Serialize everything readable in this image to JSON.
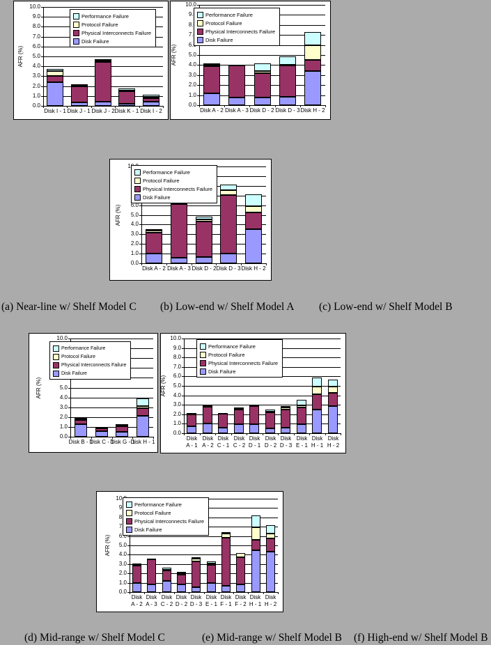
{
  "page": {
    "background_color": "#ABABAB"
  },
  "failure_colors": {
    "performance_failure": "#CCFFFF",
    "protocol_failure": "#FFFFCC",
    "physical_interconnects_failure": "#993366",
    "disk_failure": "#9999FF"
  },
  "chart_data": [
    {
      "id": "a",
      "caption": "(a) Near-line w/ Shelf Model C",
      "type": "bar",
      "stacked": true,
      "ylabel": "AFR (%)",
      "ylim": [
        0,
        10
      ],
      "ytick_step": 1.0,
      "grid": true,
      "legend_position": "top-inside",
      "two_line_xlabels": false,
      "legend_order": [
        "Performance Failure",
        "Protocol Failure",
        "Physical Interconnects Failure",
        "Disk Failure"
      ],
      "categories": [
        "Disk I - 1",
        "Disk J - 1",
        "Disk J - 2",
        "Disk K - 1",
        "Disk I - 2"
      ],
      "series": [
        {
          "name": "Disk Failure",
          "color": "#9999FF",
          "values": [
            2.4,
            0.35,
            0.45,
            0.2,
            0.45
          ]
        },
        {
          "name": "Physical Interconnects Failure",
          "color": "#993366",
          "values": [
            0.6,
            1.65,
            4.0,
            1.3,
            0.35
          ]
        },
        {
          "name": "Protocol Failure",
          "color": "#FFFFCC",
          "values": [
            0.55,
            0.05,
            0.1,
            0.05,
            0.15
          ]
        },
        {
          "name": "Performance Failure",
          "color": "#CCFFFF",
          "values": [
            0.2,
            0.1,
            0.15,
            0.2,
            0.15
          ]
        }
      ]
    },
    {
      "id": "b",
      "caption": "(b) Low-end w/ Shelf Model A",
      "type": "bar",
      "stacked": true,
      "ylabel": "AFR (%)",
      "ylim": [
        0,
        10
      ],
      "ytick_step": 1.0,
      "grid": true,
      "legend_position": "top-inside",
      "two_line_xlabels": false,
      "legend_order": [
        "Performance Failure",
        "Protocol Failure",
        "Physical Interconnects Failure",
        "Disk Failure"
      ],
      "categories": [
        "Disk A - 2",
        "Disk A - 3",
        "Disk D - 2",
        "Disk D - 3",
        "Disk H - 2"
      ],
      "series": [
        {
          "name": "Disk Failure",
          "color": "#9999FF",
          "values": [
            1.2,
            0.75,
            0.75,
            0.85,
            3.4
          ]
        },
        {
          "name": "Physical Interconnects Failure",
          "color": "#993366",
          "values": [
            2.7,
            3.2,
            2.45,
            3.15,
            1.1
          ]
        },
        {
          "name": "Protocol Failure",
          "color": "#FFFFCC",
          "values": [
            0.15,
            0.05,
            0.2,
            0.05,
            1.5
          ]
        },
        {
          "name": "Performance Failure",
          "color": "#CCFFFF",
          "values": [
            0.15,
            0.05,
            0.8,
            0.8,
            1.3
          ]
        }
      ]
    },
    {
      "id": "c",
      "caption": "(c) Low-end w/ Shelf Model B",
      "type": "bar",
      "stacked": true,
      "ylabel": "AFR (%)",
      "ylim": [
        0,
        10
      ],
      "ytick_step": 1.0,
      "grid": true,
      "legend_position": "top-inside",
      "two_line_xlabels": false,
      "legend_order": [
        "Performance Failure",
        "Protocol Failure",
        "Physical Interconnects Failure",
        "Disk Failure"
      ],
      "categories": [
        "Disk A - 2",
        "Disk A - 3",
        "Disk D - 2",
        "Disk D - 3",
        "Disk H - 2"
      ],
      "series": [
        {
          "name": "Disk Failure",
          "color": "#9999FF",
          "values": [
            1.0,
            0.55,
            0.65,
            1.0,
            3.5
          ]
        },
        {
          "name": "Physical Interconnects Failure",
          "color": "#993366",
          "values": [
            2.2,
            5.55,
            3.7,
            6.05,
            1.75
          ]
        },
        {
          "name": "Protocol Failure",
          "color": "#FFFFCC",
          "values": [
            0.15,
            0.1,
            0.15,
            0.5,
            0.65
          ]
        },
        {
          "name": "Performance Failure",
          "color": "#CCFFFF",
          "values": [
            0.15,
            0.1,
            0.3,
            0.6,
            1.25
          ]
        }
      ]
    },
    {
      "id": "d",
      "caption": "(d) Mid-range w/ Shelf Model C",
      "type": "bar",
      "stacked": true,
      "ylabel": "AFR (%)",
      "ylim": [
        0,
        10
      ],
      "ytick_step": 1.0,
      "grid": true,
      "legend_position": "top-inside",
      "two_line_xlabels": false,
      "legend_order": [
        "Performance Failure",
        "Protocol Failure",
        "Physical Interconnects Failure",
        "Disk Failure"
      ],
      "categories": [
        "Disk B - 1",
        "Disk C - 1",
        "Disk G - 1",
        "Disk H - 1"
      ],
      "series": [
        {
          "name": "Disk Failure",
          "color": "#9999FF",
          "values": [
            1.25,
            0.6,
            0.5,
            2.1
          ]
        },
        {
          "name": "Physical Interconnects Failure",
          "color": "#993366",
          "values": [
            0.45,
            0.3,
            0.55,
            0.8
          ]
        },
        {
          "name": "Protocol Failure",
          "color": "#FFFFCC",
          "values": [
            0.1,
            0.05,
            0.1,
            0.2
          ]
        },
        {
          "name": "Performance Failure",
          "color": "#CCFFFF",
          "values": [
            0.15,
            0.05,
            0.1,
            0.8
          ]
        }
      ]
    },
    {
      "id": "e",
      "caption": "(e) Mid-range w/ Shelf Model B",
      "type": "bar",
      "stacked": true,
      "ylabel": "AFR (%)",
      "ylim": [
        0,
        10
      ],
      "ytick_step": 1.0,
      "grid": true,
      "legend_position": "top-inside",
      "two_line_xlabels": true,
      "legend_order": [
        "Performance Failure",
        "Protocol Failure",
        "Physical Interconnects Failure",
        "Disk Failure"
      ],
      "categories": [
        "Disk A - 1",
        "Disk A - 2",
        "Disk C - 1",
        "Disk C - 2",
        "Disk D - 1",
        "Disk D - 2",
        "Disk D - 3",
        "Disk E - 1",
        "Disk H - 1",
        "Disk H - 2"
      ],
      "series": [
        {
          "name": "Disk Failure",
          "color": "#9999FF",
          "values": [
            0.7,
            1.05,
            0.6,
            0.95,
            0.95,
            0.55,
            0.6,
            0.95,
            2.5,
            2.9
          ]
        },
        {
          "name": "Physical Interconnects Failure",
          "color": "#993366",
          "values": [
            1.3,
            1.8,
            1.45,
            1.6,
            1.95,
            1.65,
            1.9,
            1.75,
            1.6,
            1.4
          ]
        },
        {
          "name": "Protocol Failure",
          "color": "#FFFFCC",
          "values": [
            0.05,
            0.05,
            0.05,
            0.05,
            0.05,
            0.1,
            0.2,
            0.25,
            0.85,
            0.65
          ]
        },
        {
          "name": "Performance Failure",
          "color": "#CCFFFF",
          "values": [
            0.1,
            0.05,
            0.05,
            0.1,
            0.1,
            0.2,
            0.15,
            0.55,
            0.95,
            0.7
          ]
        }
      ]
    },
    {
      "id": "f",
      "caption": "(f) High-end w/ Shelf Model B",
      "type": "bar",
      "stacked": true,
      "ylabel": "AFR (%)",
      "ylim": [
        0,
        10
      ],
      "ytick_step": 1.0,
      "grid": true,
      "legend_position": "top-inside",
      "two_line_xlabels": true,
      "legend_order": [
        "Performance Failure",
        "Protocol Failure",
        "Physical Interconnects Failure",
        "Disk Failure"
      ],
      "categories": [
        "Disk A - 2",
        "Disk A - 3",
        "Disk C - 2",
        "Disk D - 2",
        "Disk D - 3",
        "Disk E - 1",
        "Disk F - 1",
        "Disk F - 2",
        "Disk H - 1",
        "Disk H - 2"
      ],
      "series": [
        {
          "name": "Disk Failure",
          "color": "#9999FF",
          "values": [
            1.0,
            0.8,
            1.2,
            0.8,
            0.5,
            1.0,
            0.65,
            0.8,
            4.45,
            4.3
          ]
        },
        {
          "name": "Physical Interconnects Failure",
          "color": "#993366",
          "values": [
            1.85,
            2.7,
            1.1,
            1.05,
            2.75,
            1.9,
            5.2,
            2.95,
            1.15,
            1.45
          ]
        },
        {
          "name": "Protocol Failure",
          "color": "#FFFFCC",
          "values": [
            0.1,
            0.05,
            0.1,
            0.15,
            0.35,
            0.15,
            0.45,
            0.45,
            1.35,
            0.55
          ]
        },
        {
          "name": "Performance Failure",
          "color": "#CCFFFF",
          "values": [
            0.1,
            0.05,
            0.2,
            0.15,
            0.1,
            0.25,
            0.1,
            0.0,
            1.25,
            0.9
          ]
        }
      ]
    }
  ]
}
